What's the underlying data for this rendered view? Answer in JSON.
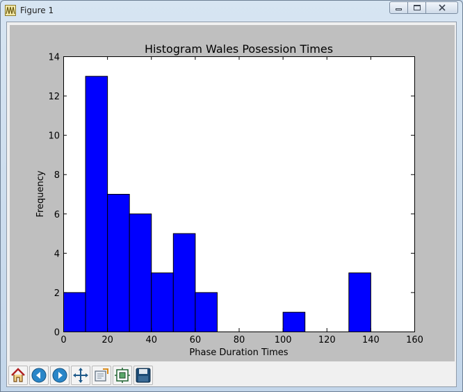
{
  "window": {
    "title": "Figure 1",
    "icon": "matplotlib-figure-icon",
    "controls": {
      "minimize": "minimize-icon",
      "maximize": "maximize-icon",
      "close": "close-icon"
    }
  },
  "colors": {
    "bar_fill": "#0000ff",
    "plot_bg": "#ffffff",
    "figure_bg": "#bfbfbf"
  },
  "toolbar": {
    "buttons": [
      {
        "name": "home",
        "icon": "home-icon"
      },
      {
        "name": "back",
        "icon": "back-arrow-icon"
      },
      {
        "name": "forward",
        "icon": "forward-arrow-icon"
      },
      {
        "name": "pan",
        "icon": "pan-move-icon"
      },
      {
        "name": "zoom",
        "icon": "zoom-rectangle-icon"
      },
      {
        "name": "subplots",
        "icon": "configure-subplots-icon"
      },
      {
        "name": "save",
        "icon": "save-floppy-icon"
      }
    ]
  },
  "chart_data": {
    "type": "bar",
    "title": "Histogram Wales Posession Times",
    "xlabel": "Phase Duration Times",
    "ylabel": "Frequency",
    "xlim": [
      0,
      160
    ],
    "ylim": [
      0,
      14
    ],
    "x_ticks": [
      "0",
      "20",
      "40",
      "60",
      "80",
      "100",
      "120",
      "140",
      "160"
    ],
    "y_ticks": [
      "0",
      "2",
      "4",
      "6",
      "8",
      "10",
      "12",
      "14"
    ],
    "bins": [
      {
        "start": 0,
        "end": 10,
        "count": 2
      },
      {
        "start": 10,
        "end": 20,
        "count": 13
      },
      {
        "start": 20,
        "end": 30,
        "count": 7
      },
      {
        "start": 30,
        "end": 40,
        "count": 6
      },
      {
        "start": 40,
        "end": 50,
        "count": 3
      },
      {
        "start": 50,
        "end": 60,
        "count": 5
      },
      {
        "start": 60,
        "end": 70,
        "count": 2
      },
      {
        "start": 100,
        "end": 110,
        "count": 1
      },
      {
        "start": 130,
        "end": 140,
        "count": 3
      }
    ],
    "grid": false,
    "legend": "none"
  }
}
